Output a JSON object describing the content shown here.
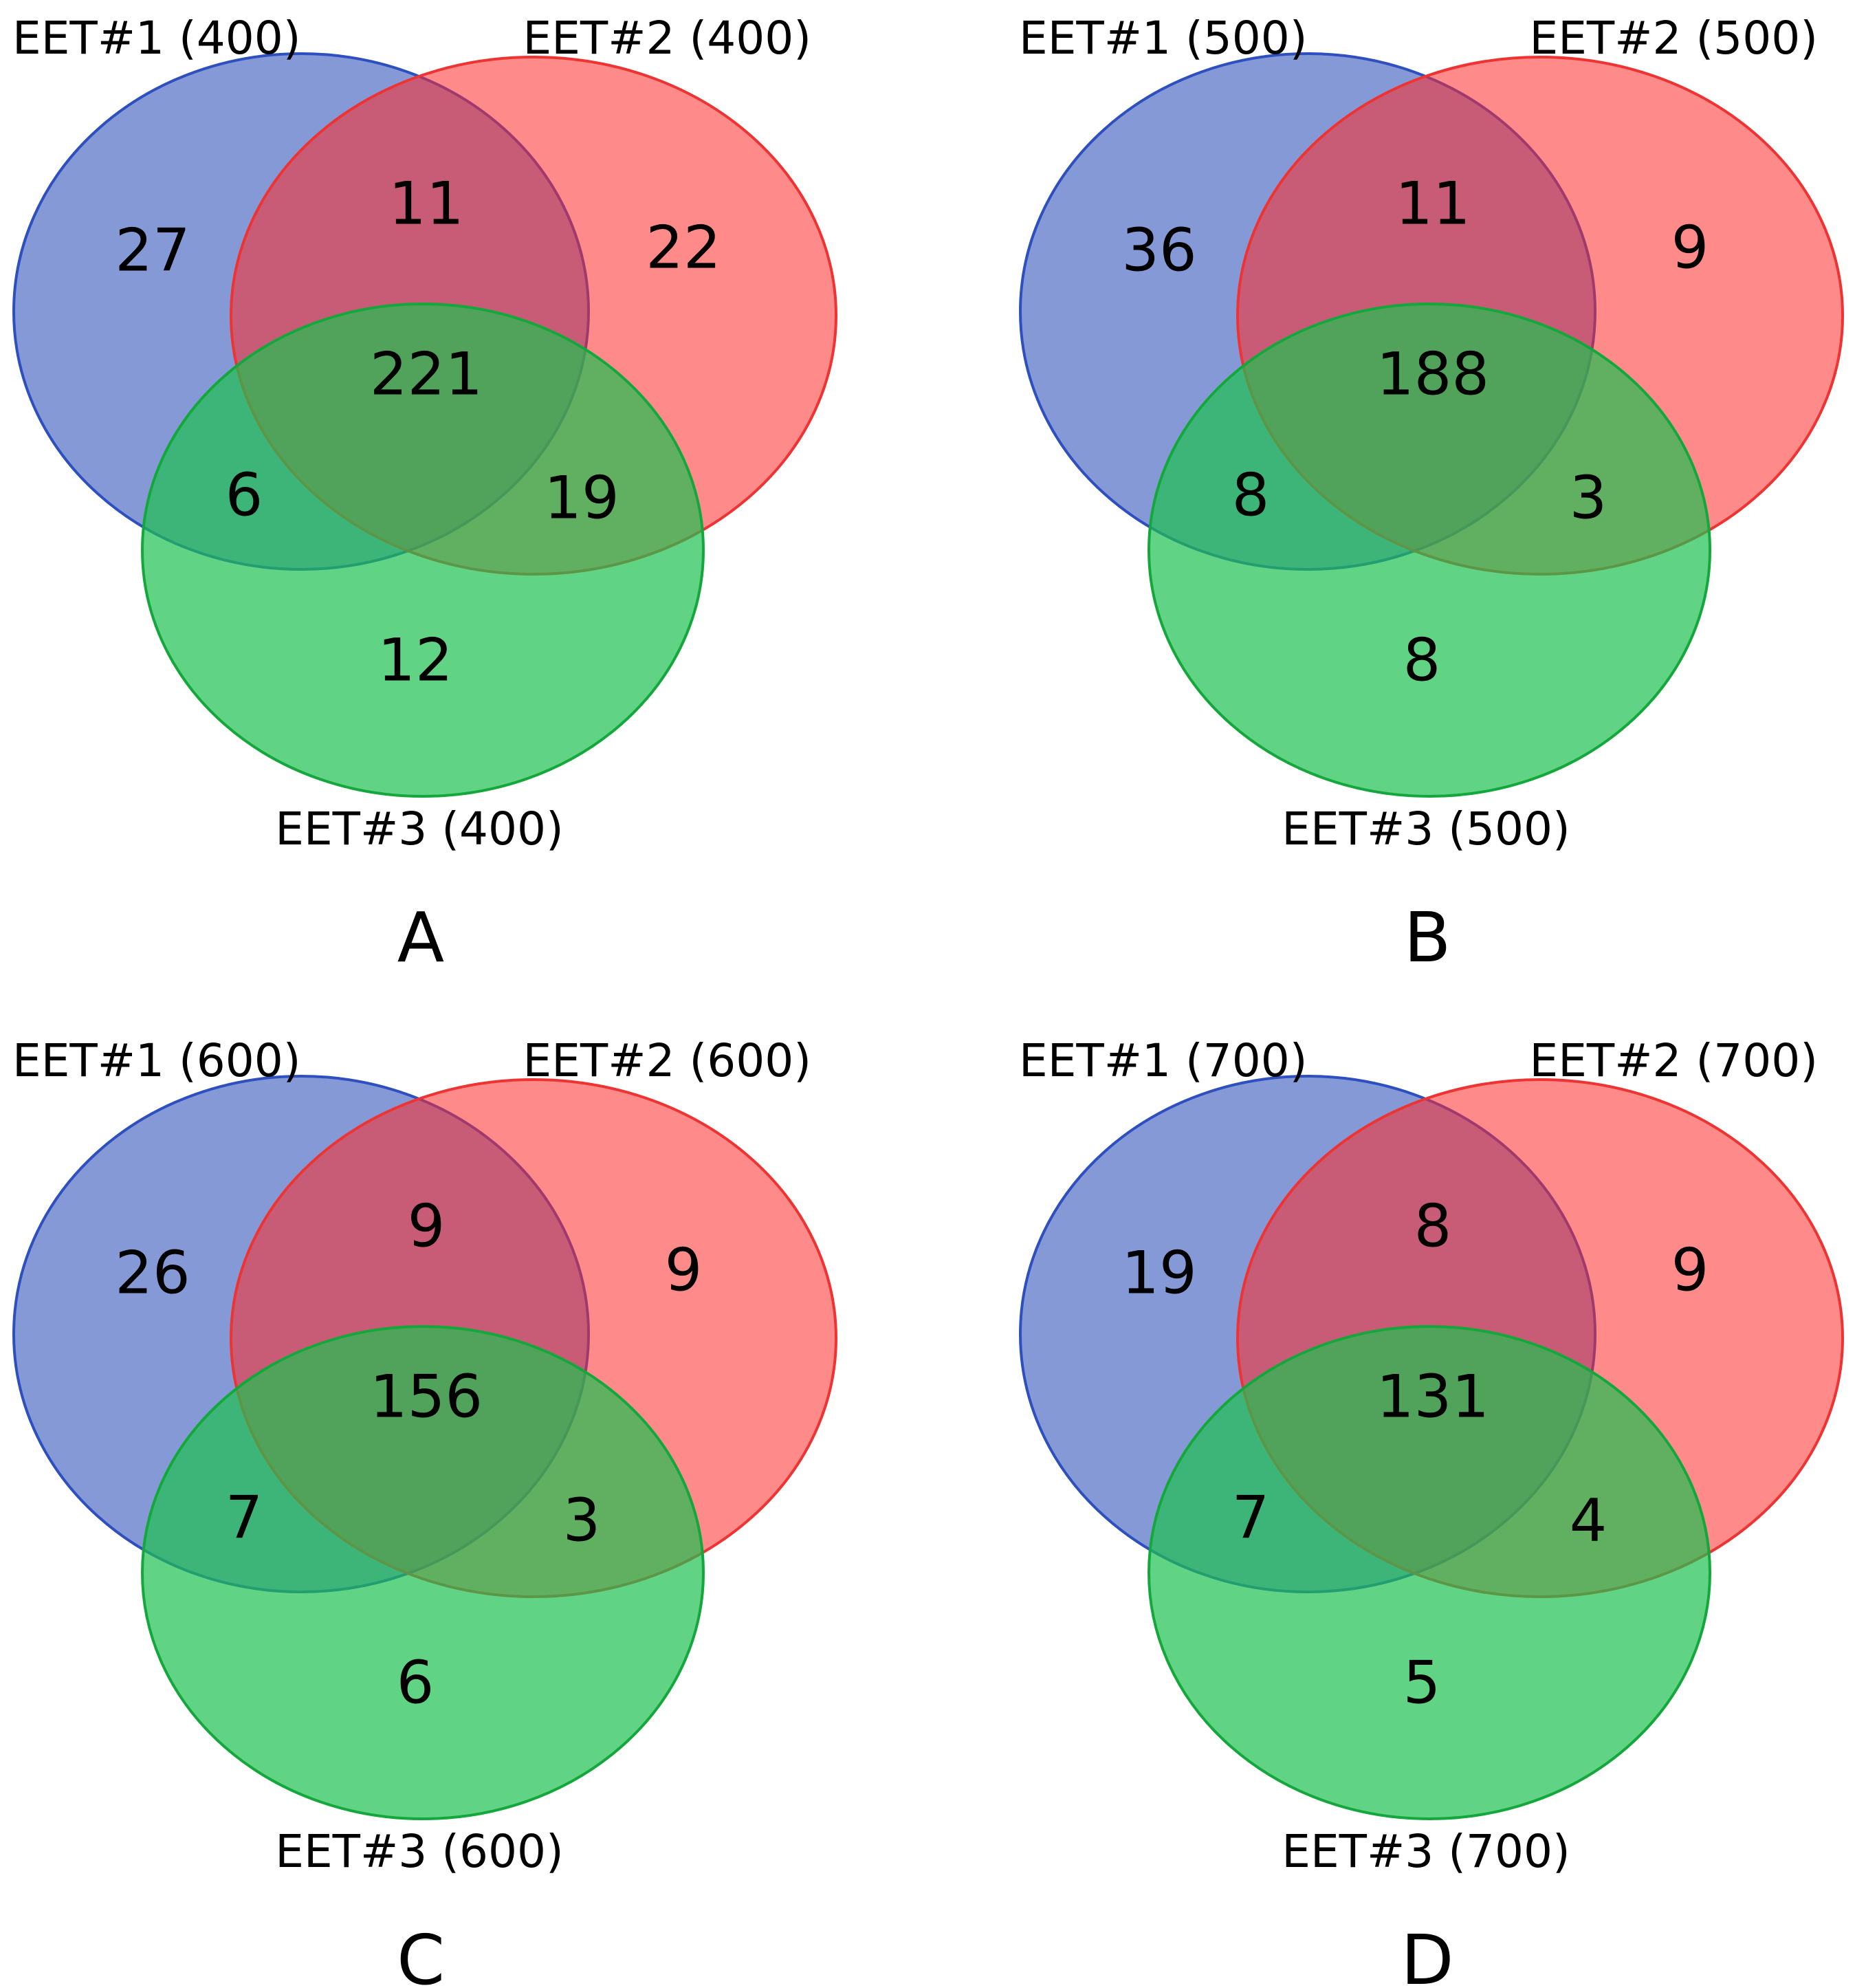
{
  "colors": {
    "set1_fill": "#3355bb",
    "set1_stroke": "#2e4fbf",
    "set2_fill": "#ff2a2a",
    "set2_stroke": "#ee3333",
    "set3_fill": "#1ec050",
    "set3_stroke": "#14a83c"
  },
  "panels": [
    {
      "letter": "A",
      "set_labels": {
        "set1": "EET#1 (400)",
        "set2": "EET#2 (400)",
        "set3": "EET#3 (400)"
      },
      "counts": {
        "only1": "27",
        "only2": "22",
        "only3": "12",
        "set1_set2": "11",
        "set1_set3": "6",
        "set2_set3": "19",
        "all": "221"
      }
    },
    {
      "letter": "B",
      "set_labels": {
        "set1": "EET#1 (500)",
        "set2": "EET#2 (500)",
        "set3": "EET#3 (500)"
      },
      "counts": {
        "only1": "36",
        "only2": "9",
        "only3": "8",
        "set1_set2": "11",
        "set1_set3": "8",
        "set2_set3": "3",
        "all": "188"
      }
    },
    {
      "letter": "C",
      "set_labels": {
        "set1": "EET#1 (600)",
        "set2": "EET#2 (600)",
        "set3": "EET#3 (600)"
      },
      "counts": {
        "only1": "26",
        "only2": "9",
        "only3": "6",
        "set1_set2": "9",
        "set1_set3": "7",
        "set2_set3": "3",
        "all": "156"
      }
    },
    {
      "letter": "D",
      "set_labels": {
        "set1": "EET#1 (700)",
        "set2": "EET#2 (700)",
        "set3": "EET#3 (700)"
      },
      "counts": {
        "only1": "19",
        "only2": "9",
        "only3": "5",
        "set1_set2": "8",
        "set1_set3": "7",
        "set2_set3": "4",
        "all": "131"
      }
    }
  ]
}
